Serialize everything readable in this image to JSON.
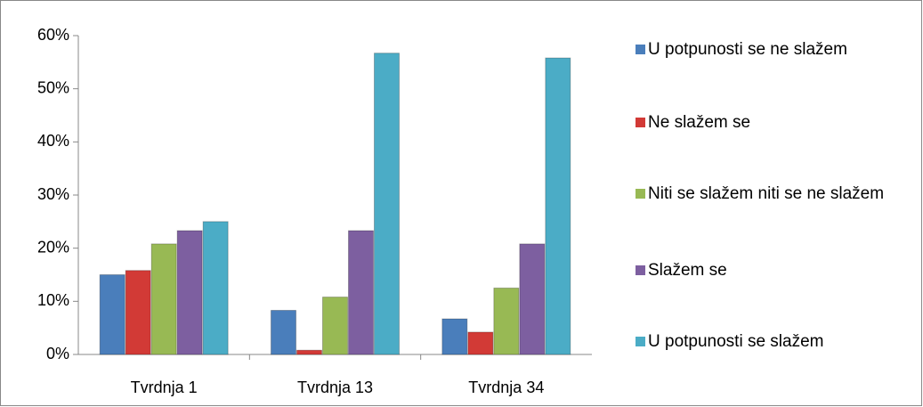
{
  "chart_data": {
    "type": "bar",
    "categories": [
      "Tvrdnja 1",
      "Tvrdnja 13",
      "Tvrdnja 34"
    ],
    "series": [
      {
        "name": "U potpunosti se ne slažem",
        "color": "#4a7ebb",
        "values": [
          15,
          8.3,
          6.7
        ]
      },
      {
        "name": "Ne slažem se",
        "color": "#d23a36",
        "values": [
          15.8,
          0.8,
          4.2
        ]
      },
      {
        "name": "Niti se slažem niti se ne slažem",
        "color": "#98b954",
        "values": [
          20.8,
          10.8,
          12.5
        ]
      },
      {
        "name": "Slažem se",
        "color": "#7d5fa0",
        "values": [
          23.3,
          23.3,
          20.8
        ]
      },
      {
        "name": "U potpunosti se slažem",
        "color": "#4bacc6",
        "values": [
          25,
          56.7,
          55.8
        ]
      }
    ],
    "ylim": [
      0,
      60
    ],
    "yticks": [
      {
        "value": 0,
        "label": "0%"
      },
      {
        "value": 10,
        "label": "10%"
      },
      {
        "value": 20,
        "label": "20%"
      },
      {
        "value": 30,
        "label": "30%"
      },
      {
        "value": 40,
        "label": "40%"
      },
      {
        "value": 50,
        "label": "50%"
      },
      {
        "value": 60,
        "label": "60%"
      }
    ],
    "grid": false,
    "legend": "right"
  }
}
